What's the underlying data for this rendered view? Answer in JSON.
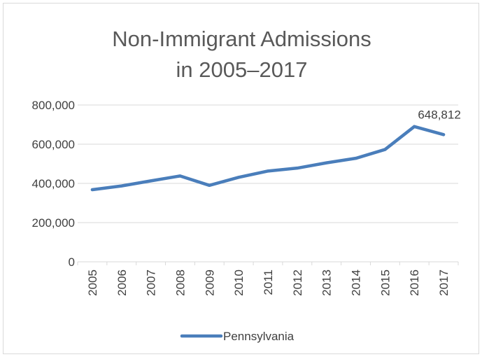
{
  "chart_data": {
    "type": "line",
    "title": [
      "Non-Immigrant Admissions",
      "in 2005–2017"
    ],
    "xlabel": "",
    "ylabel": "",
    "categories": [
      "2005",
      "2006",
      "2007",
      "2008",
      "2009",
      "2010",
      "2011",
      "2012",
      "2013",
      "2014",
      "2015",
      "2016",
      "2017"
    ],
    "series": [
      {
        "name": "Pennsylvania",
        "color": "#4a7ebb",
        "values": [
          368000,
          387000,
          413000,
          438000,
          390000,
          431000,
          463000,
          478000,
          505000,
          528000,
          573000,
          690000,
          648812
        ]
      }
    ],
    "data_labels": [
      {
        "series_index": 0,
        "point_index": 12,
        "text": "648,812"
      }
    ],
    "ylim": [
      0,
      800000
    ],
    "yticks": [
      0,
      200000,
      400000,
      600000,
      800000
    ],
    "ytick_labels": [
      "0",
      "200,000",
      "400,000",
      "600,000",
      "800,000"
    ],
    "grid": true,
    "grid_color": "#d9d9d9",
    "legend_position": "bottom"
  }
}
